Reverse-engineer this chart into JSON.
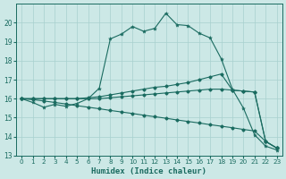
{
  "xlabel": "Humidex (Indice chaleur)",
  "bg_color": "#cce8e6",
  "grid_color": "#a8d0ce",
  "line_color": "#1a6b60",
  "xlim": [
    -0.5,
    23.5
  ],
  "ylim": [
    13,
    21
  ],
  "yticks": [
    13,
    14,
    15,
    16,
    17,
    18,
    19,
    20
  ],
  "xticks": [
    0,
    1,
    2,
    3,
    4,
    5,
    6,
    7,
    8,
    9,
    10,
    11,
    12,
    13,
    14,
    15,
    16,
    17,
    18,
    19,
    20,
    21,
    22,
    23
  ],
  "s1_x": [
    0,
    1,
    2,
    3,
    4,
    5,
    6,
    7,
    8,
    9,
    10,
    11,
    12,
    13,
    14,
    15,
    16,
    17,
    18,
    19,
    20,
    21,
    22,
    23
  ],
  "s1_y": [
    16.0,
    15.8,
    15.55,
    15.7,
    15.6,
    15.75,
    16.0,
    16.55,
    19.15,
    19.4,
    19.8,
    19.55,
    19.7,
    20.5,
    19.9,
    19.85,
    19.45,
    19.2,
    18.1,
    16.5,
    15.5,
    14.1,
    13.5,
    13.3
  ],
  "s2_x": [
    0,
    1,
    2,
    3,
    4,
    5,
    6,
    7,
    8,
    9,
    10,
    11,
    12,
    13,
    14,
    15,
    16,
    17,
    18,
    19,
    20,
    21,
    22,
    23
  ],
  "s2_y": [
    16.0,
    16.0,
    16.0,
    16.0,
    16.0,
    16.0,
    16.05,
    16.1,
    16.2,
    16.3,
    16.4,
    16.5,
    16.6,
    16.65,
    16.75,
    16.85,
    17.0,
    17.15,
    17.3,
    16.45,
    16.4,
    16.35,
    13.75,
    13.4
  ],
  "s3_x": [
    0,
    1,
    2,
    3,
    4,
    5,
    6,
    7,
    8,
    9,
    10,
    11,
    12,
    13,
    14,
    15,
    16,
    17,
    18,
    19,
    20,
    21,
    22,
    23
  ],
  "s3_y": [
    16.0,
    16.0,
    16.0,
    16.0,
    16.0,
    16.0,
    16.0,
    16.0,
    16.05,
    16.1,
    16.15,
    16.2,
    16.25,
    16.3,
    16.35,
    16.4,
    16.45,
    16.5,
    16.5,
    16.45,
    16.4,
    16.35,
    13.75,
    13.4
  ],
  "s4_x": [
    0,
    1,
    2,
    3,
    4,
    5,
    6,
    7,
    8,
    9,
    10,
    11,
    12,
    13,
    14,
    15,
    16,
    17,
    18,
    19,
    20,
    21,
    22,
    23
  ],
  "s4_y": [
    16.0,
    15.95,
    15.88,
    15.8,
    15.72,
    15.63,
    15.55,
    15.47,
    15.38,
    15.3,
    15.22,
    15.13,
    15.05,
    14.97,
    14.88,
    14.8,
    14.72,
    14.63,
    14.55,
    14.47,
    14.38,
    14.3,
    13.75,
    13.4
  ]
}
